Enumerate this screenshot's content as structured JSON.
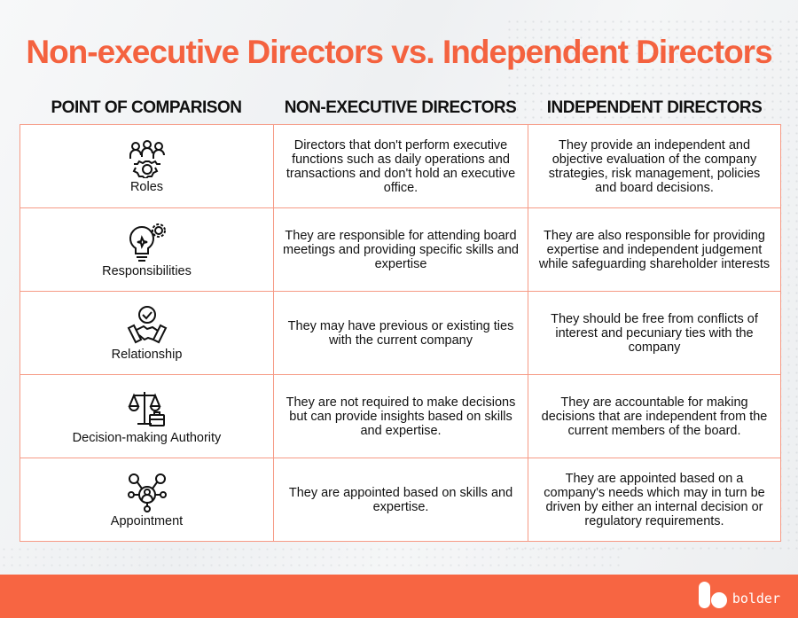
{
  "title": "Non-executive Directors vs. Independent Directors",
  "headers": [
    "POINT OF COMPARISON",
    "NON-EXECUTIVE DIRECTORS",
    "INDEPENDENT DIRECTORS"
  ],
  "rows": [
    {
      "icon": "team-gear-icon",
      "label": "Roles",
      "ned": "Directors that don't perform executive functions such as daily operations and transactions and don't hold an executive office.",
      "ind": "They provide an independent and objective evaluation of the company strategies, risk management, policies and board decisions."
    },
    {
      "icon": "lightbulb-gear-icon",
      "label": "Responsibilities",
      "ned": "They are responsible for attending board meetings and providing specific skills and expertise",
      "ind": "They are also responsible for providing expertise and independent judgement while safeguarding shareholder interests"
    },
    {
      "icon": "handshake-check-icon",
      "label": "Relationship",
      "ned": "They may have previous or existing ties with the current company",
      "ind": "They should be free from conflicts of interest and pecuniary ties with the company"
    },
    {
      "icon": "scales-briefcase-icon",
      "label": "Decision-making Authority",
      "ned": "They are not required to make decisions but can provide insights based on skills and expertise.",
      "ind": "They are accountable for making decisions that are independent from the current members of the board."
    },
    {
      "icon": "network-person-icon",
      "label": "Appointment",
      "ned": "They are appointed based on skills and expertise.",
      "ind": "They are appointed based on a company's needs which may in turn be driven by either an internal decision or regulatory requirements."
    }
  ],
  "brand": "bolder",
  "colors": {
    "accent": "#f4623f",
    "border": "#f69a85",
    "footer": "#f76542"
  }
}
